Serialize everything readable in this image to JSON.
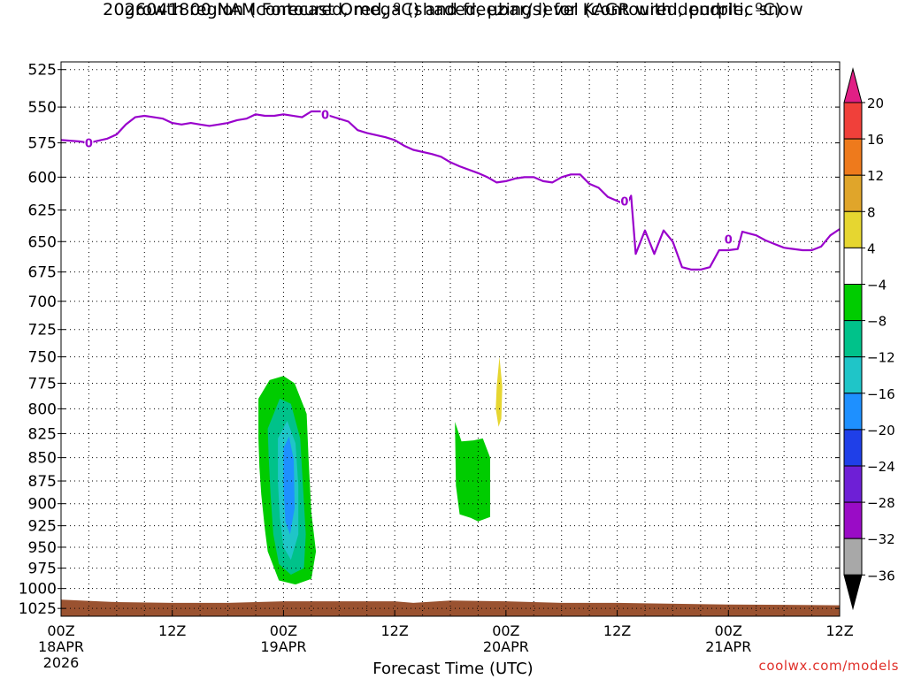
{
  "title_line1": "2026041800 NAM Forecast Omega (shaded, μbar/s) for KAGR with dendritic snow",
  "title_line2": "growth region (contoured, red, ºC) and freezing level (contoured, purple, ºC)",
  "credit": "coolwx.com/models",
  "chart_data": {
    "type": "time-height",
    "xlabel": "Forecast Time (UTC)",
    "ylabel": "",
    "x_range_hours": [
      0,
      84
    ],
    "x_ticks": [
      {
        "hour": 0,
        "label": "00Z",
        "sub1": "18APR",
        "sub2": "2026"
      },
      {
        "hour": 12,
        "label": "12Z",
        "sub1": "",
        "sub2": ""
      },
      {
        "hour": 24,
        "label": "00Z",
        "sub1": "19APR",
        "sub2": ""
      },
      {
        "hour": 36,
        "label": "12Z",
        "sub1": "",
        "sub2": ""
      },
      {
        "hour": 48,
        "label": "00Z",
        "sub1": "20APR",
        "sub2": ""
      },
      {
        "hour": 60,
        "label": "12Z",
        "sub1": "",
        "sub2": ""
      },
      {
        "hour": 72,
        "label": "00Z",
        "sub1": "21APR",
        "sub2": ""
      },
      {
        "hour": 84,
        "label": "12Z",
        "sub1": "",
        "sub2": ""
      }
    ],
    "y_axis": "pressure (mb), log scale, inverted",
    "y_range": [
      520,
      1035
    ],
    "y_ticks": [
      525,
      550,
      575,
      600,
      625,
      650,
      675,
      700,
      725,
      750,
      775,
      800,
      825,
      850,
      875,
      900,
      925,
      950,
      975,
      1000,
      1025
    ],
    "grid": true,
    "colorbar": {
      "labels": [
        "20",
        "16",
        "12",
        "8",
        "4",
        "−4",
        "−8",
        "−12",
        "−16",
        "−20",
        "−24",
        "−28",
        "−32",
        "−36"
      ],
      "colors": [
        "#e11f85",
        "#f0403a",
        "#ee7a1c",
        "#e0a52a",
        "#e6d630",
        "#ffffff",
        "#00cc00",
        "#00c28a",
        "#1fc5c8",
        "#1e90ff",
        "#1f3fe8",
        "#6e1fd6",
        "#9a0cc6",
        "#a8a8a8",
        "#000000"
      ]
    },
    "freezing_level": {
      "label": "0",
      "color": "#9900cc",
      "points": [
        [
          0,
          573
        ],
        [
          2,
          574
        ],
        [
          3,
          575
        ],
        [
          5,
          572
        ],
        [
          6,
          569
        ],
        [
          7,
          562
        ],
        [
          8,
          557
        ],
        [
          9,
          556
        ],
        [
          10,
          557
        ],
        [
          11,
          558
        ],
        [
          12,
          561
        ],
        [
          13,
          562
        ],
        [
          14,
          561
        ],
        [
          15,
          562
        ],
        [
          16,
          563
        ],
        [
          17,
          562
        ],
        [
          18,
          561
        ],
        [
          19,
          559
        ],
        [
          20,
          558
        ],
        [
          21,
          555
        ],
        [
          22,
          556
        ],
        [
          23,
          556
        ],
        [
          24,
          555
        ],
        [
          26,
          557
        ],
        [
          27,
          553
        ],
        [
          28,
          553
        ],
        [
          29,
          556
        ],
        [
          31,
          560
        ],
        [
          32,
          566
        ],
        [
          33,
          568
        ],
        [
          35,
          571
        ],
        [
          36,
          573
        ],
        [
          37,
          577
        ],
        [
          38,
          580
        ],
        [
          40,
          583
        ],
        [
          41,
          585
        ],
        [
          42,
          589
        ],
        [
          43,
          592
        ],
        [
          45,
          597
        ],
        [
          46,
          600
        ],
        [
          47,
          604
        ],
        [
          48,
          603
        ],
        [
          49,
          601
        ],
        [
          50,
          600
        ],
        [
          51,
          600
        ],
        [
          52,
          603
        ],
        [
          53,
          604
        ],
        [
          54,
          600
        ],
        [
          55,
          598
        ],
        [
          56,
          598
        ],
        [
          57,
          605
        ],
        [
          58,
          608
        ],
        [
          59,
          615
        ],
        [
          60,
          618
        ],
        [
          61,
          621
        ],
        [
          61.5,
          614
        ],
        [
          62,
          660
        ],
        [
          63,
          641
        ],
        [
          64,
          660
        ],
        [
          65,
          641
        ],
        [
          66,
          650
        ],
        [
          67,
          671
        ],
        [
          68,
          673
        ],
        [
          69,
          673
        ],
        [
          70,
          671
        ],
        [
          71,
          657
        ],
        [
          72,
          657
        ],
        [
          73,
          656
        ],
        [
          73.5,
          642
        ],
        [
          74,
          643
        ],
        [
          75,
          645
        ],
        [
          76,
          649
        ],
        [
          77,
          652
        ],
        [
          78,
          655
        ],
        [
          79,
          656
        ],
        [
          80,
          657
        ],
        [
          81,
          657
        ],
        [
          82,
          654
        ],
        [
          83,
          645
        ],
        [
          84,
          640
        ]
      ]
    },
    "omega_regions": [
      {
        "value_range": "-8 to -4",
        "color": "#00cc00",
        "polygon": [
          [
            21.3,
            790
          ],
          [
            22.5,
            772
          ],
          [
            24,
            768
          ],
          [
            25.2,
            775
          ],
          [
            26.5,
            805
          ],
          [
            26.7,
            850
          ],
          [
            27,
            910
          ],
          [
            27.5,
            955
          ],
          [
            27,
            988
          ],
          [
            25.3,
            995
          ],
          [
            23.5,
            990
          ],
          [
            22.3,
            955
          ],
          [
            22,
            930
          ],
          [
            21.6,
            890
          ],
          [
            21.4,
            860
          ],
          [
            21.3,
            830
          ]
        ]
      },
      {
        "value_range": "-12 to -8",
        "color": "#00c28a",
        "polygon": [
          [
            22.3,
            820
          ],
          [
            23.6,
            790
          ],
          [
            24.8,
            795
          ],
          [
            25.8,
            830
          ],
          [
            26.1,
            880
          ],
          [
            26.4,
            935
          ],
          [
            26.2,
            975
          ],
          [
            24.8,
            983
          ],
          [
            23.5,
            970
          ],
          [
            22.9,
            935
          ],
          [
            22.6,
            890
          ],
          [
            22.4,
            850
          ]
        ]
      },
      {
        "value_range": "-16 to -12",
        "color": "#1fc5c8",
        "polygon": [
          [
            23.4,
            830
          ],
          [
            24.4,
            812
          ],
          [
            25.3,
            835
          ],
          [
            25.6,
            880
          ],
          [
            25.6,
            935
          ],
          [
            24.8,
            965
          ],
          [
            24,
            950
          ],
          [
            23.6,
            915
          ],
          [
            23.4,
            875
          ]
        ]
      },
      {
        "value_range": "-20 to -16",
        "color": "#1e90ff",
        "polygon": [
          [
            24,
            840
          ],
          [
            24.6,
            828
          ],
          [
            25.1,
            852
          ],
          [
            25.2,
            905
          ],
          [
            24.7,
            935
          ],
          [
            24.2,
            920
          ],
          [
            24,
            880
          ]
        ]
      },
      {
        "value_range": "-8 to -4",
        "color": "#00cc00",
        "polygon": [
          [
            42.5,
            813
          ],
          [
            43.2,
            833
          ],
          [
            44.5,
            832
          ],
          [
            45.5,
            830
          ],
          [
            46.3,
            850
          ],
          [
            46.3,
            915
          ],
          [
            45,
            920
          ],
          [
            44.2,
            916
          ],
          [
            43,
            912
          ],
          [
            42.6,
            880
          ]
        ]
      },
      {
        "value_range": "4 to 8",
        "color": "#e6d630",
        "polygon": [
          [
            47,
            778
          ],
          [
            47.3,
            750
          ],
          [
            47.6,
            778
          ],
          [
            47.5,
            810
          ],
          [
            47.2,
            818
          ],
          [
            46.9,
            800
          ]
        ]
      }
    ],
    "terrain": {
      "color": "#9a5230",
      "top_mb": 1017,
      "points": [
        [
          0,
          1014
        ],
        [
          6,
          1017
        ],
        [
          12,
          1018
        ],
        [
          18,
          1018
        ],
        [
          24,
          1016
        ],
        [
          36,
          1016
        ],
        [
          38,
          1018
        ],
        [
          42,
          1015
        ],
        [
          48,
          1016
        ],
        [
          54,
          1018
        ],
        [
          60,
          1018
        ],
        [
          72,
          1020
        ],
        [
          84,
          1021
        ]
      ]
    }
  }
}
